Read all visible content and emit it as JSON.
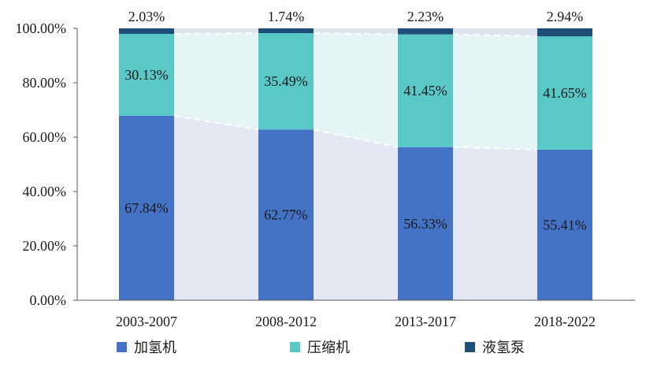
{
  "chart_data": {
    "type": "bar",
    "stacked": true,
    "percent": true,
    "categories": [
      "2003-2007",
      "2008-2012",
      "2013-2017",
      "2018-2022"
    ],
    "series": [
      {
        "name": "加氢机",
        "values": [
          67.84,
          62.77,
          56.33,
          55.41
        ],
        "labels": [
          "67.84%",
          "62.77%",
          "56.33%",
          "55.41%"
        ]
      },
      {
        "name": "压缩机",
        "values": [
          30.13,
          35.49,
          41.45,
          41.65
        ],
        "labels": [
          "30.13%",
          "35.49%",
          "41.45%",
          "41.65%"
        ]
      },
      {
        "name": "液氢泵",
        "values": [
          2.03,
          1.74,
          2.23,
          2.94
        ],
        "labels": [
          "2.03%",
          "1.74%",
          "2.23%",
          "2.94%"
        ]
      }
    ],
    "ylim": [
      0,
      100
    ],
    "yticks": [
      0,
      20,
      40,
      60,
      80,
      100
    ],
    "ytick_labels": [
      "0.00%",
      "20.00%",
      "40.00%",
      "60.00%",
      "80.00%",
      "100.00%"
    ],
    "legend_position": "bottom",
    "grid": false,
    "colors": {
      "加氢机": "#4472c4",
      "压缩机": "#5bc8c8",
      "液氢泵": "#1f4e79",
      "connector_lower": "#e4e8f4",
      "connector_upper": "#e4f5f5",
      "connector_top": "#dde4ee"
    }
  }
}
